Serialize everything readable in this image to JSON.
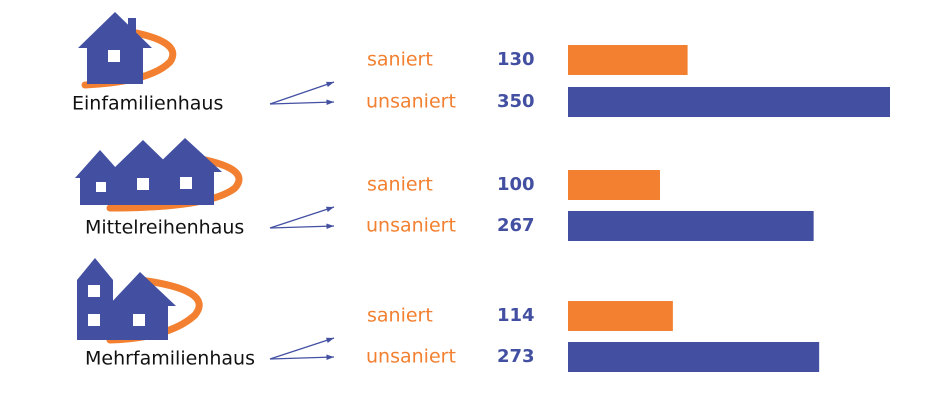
{
  "chart_data": {
    "type": "bar",
    "categories": [
      "Einfamilienhaus",
      "Mittelreihenhaus",
      "Mehrfamilienhaus"
    ],
    "series": [
      {
        "name": "saniert",
        "color": "#f28030",
        "values": [
          130,
          100,
          114
        ]
      },
      {
        "name": "unsaniert",
        "color": "#4350a2",
        "values": [
          350,
          267,
          273
        ]
      }
    ]
  }
}
